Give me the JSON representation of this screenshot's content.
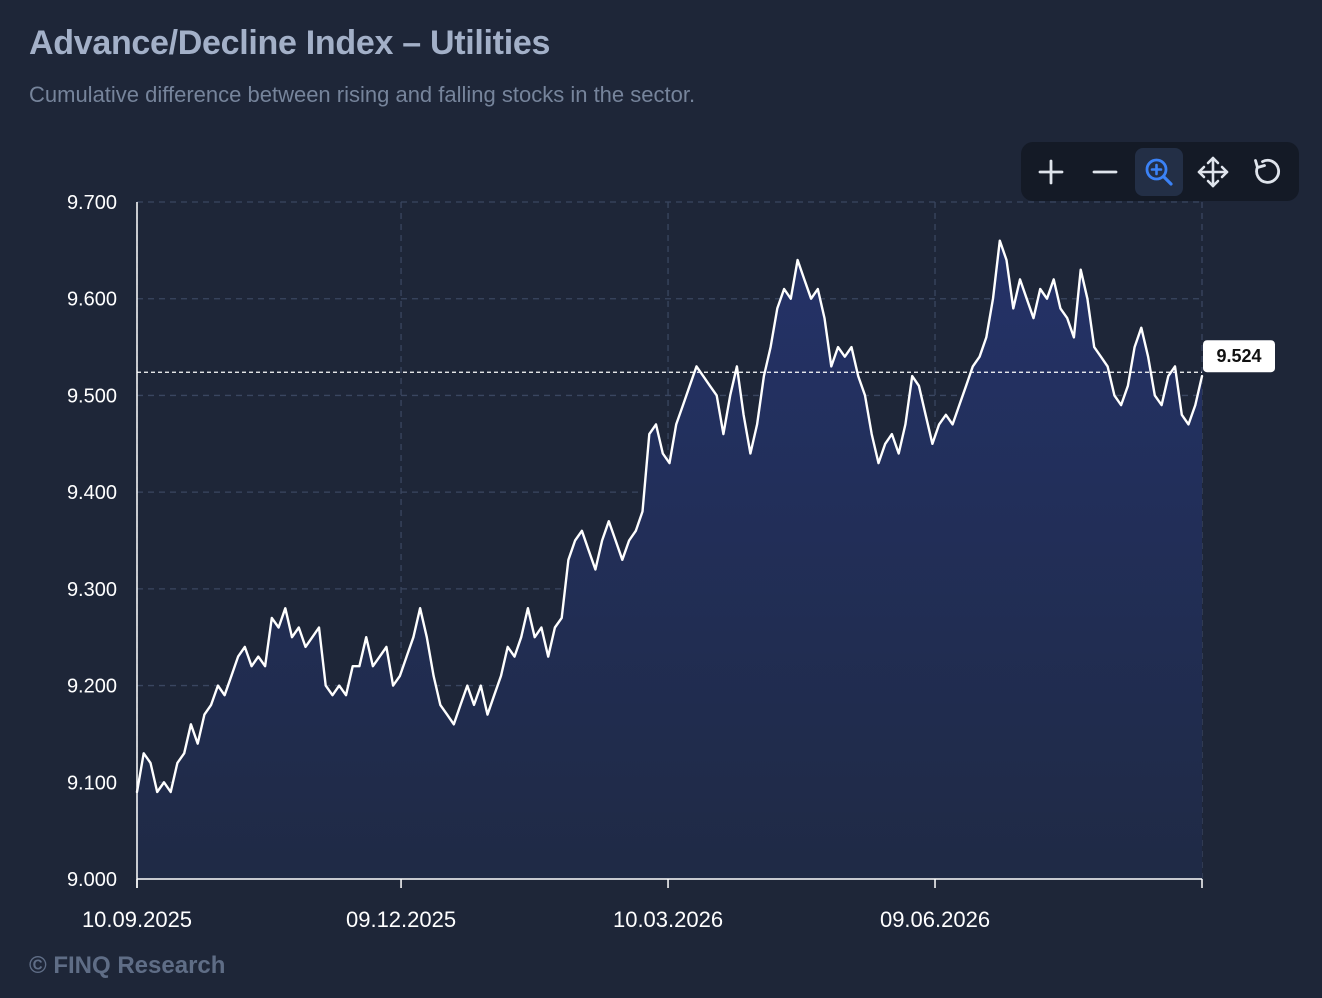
{
  "header": {
    "title": "Advance/Decline Index – Utilities",
    "subtitle": "Cumulative difference between rising and falling stocks in the sector."
  },
  "toolbar": {
    "tools": [
      {
        "name": "zoom-in",
        "icon": "plus-icon",
        "active": false
      },
      {
        "name": "zoom-out",
        "icon": "minus-icon",
        "active": false
      },
      {
        "name": "selection-zoom",
        "icon": "zoom-magnifier-icon",
        "active": true
      },
      {
        "name": "pan",
        "icon": "pan-arrows-icon",
        "active": false
      },
      {
        "name": "reset",
        "icon": "reset-icon",
        "active": false
      }
    ]
  },
  "footer": {
    "credit": "© FINQ Research"
  },
  "colors": {
    "background": "#1e2638",
    "line": "#ffffff",
    "fill_top": "#243268",
    "fill_bottom": "#1f2a45",
    "grid": "#3a4660",
    "active_tool": "#3b82f6"
  },
  "chart_data": {
    "type": "area",
    "title": "Advance/Decline Index – Utilities",
    "subtitle": "Cumulative difference between rising and falling stocks in the sector.",
    "xlabel": "",
    "ylabel": "",
    "x_start": "10.09.2025",
    "x_end": "2026-09-08",
    "x_ticks": [
      {
        "date": "2025-09-10",
        "label": "10.09.2025"
      },
      {
        "date": "2025-12-09",
        "label": "09.12.2025"
      },
      {
        "date": "2026-03-10",
        "label": "10.03.2026"
      },
      {
        "date": "2026-06-09",
        "label": "09.06.2026"
      }
    ],
    "ylim": [
      9.0,
      9.7
    ],
    "y_ticks": [
      9.0,
      9.1,
      9.2,
      9.3,
      9.4,
      9.5,
      9.6,
      9.7
    ],
    "y_tick_labels": [
      "9.000",
      "9.100",
      "9.200",
      "9.300",
      "9.400",
      "9.500",
      "9.600",
      "9.700"
    ],
    "grid": true,
    "last_value": 9.524,
    "last_value_label": "9.524",
    "series": [
      {
        "values": [
          9.09,
          9.13,
          9.12,
          9.09,
          9.1,
          9.09,
          9.12,
          9.13,
          9.16,
          9.14,
          9.17,
          9.18,
          9.2,
          9.19,
          9.21,
          9.23,
          9.24,
          9.22,
          9.23,
          9.22,
          9.27,
          9.26,
          9.28,
          9.25,
          9.26,
          9.24,
          9.25,
          9.26,
          9.2,
          9.19,
          9.2,
          9.19,
          9.22,
          9.22,
          9.25,
          9.22,
          9.23,
          9.24,
          9.2,
          9.21,
          9.23,
          9.25,
          9.28,
          9.25,
          9.21,
          9.18,
          9.17,
          9.16,
          9.18,
          9.2,
          9.18,
          9.2,
          9.17,
          9.19,
          9.21,
          9.24,
          9.23,
          9.25,
          9.28,
          9.25,
          9.26,
          9.23,
          9.26,
          9.27,
          9.33,
          9.35,
          9.36,
          9.34,
          9.32,
          9.35,
          9.37,
          9.35,
          9.33,
          9.35,
          9.36,
          9.38,
          9.46,
          9.47,
          9.44,
          9.43,
          9.47,
          9.49,
          9.51,
          9.53,
          9.52,
          9.51,
          9.5,
          9.46,
          9.5,
          9.53,
          9.48,
          9.44,
          9.47,
          9.52,
          9.55,
          9.59,
          9.61,
          9.6,
          9.64,
          9.62,
          9.6,
          9.61,
          9.58,
          9.53,
          9.55,
          9.54,
          9.55,
          9.52,
          9.5,
          9.46,
          9.43,
          9.45,
          9.46,
          9.44,
          9.47,
          9.52,
          9.51,
          9.48,
          9.45,
          9.47,
          9.48,
          9.47,
          9.49,
          9.51,
          9.53,
          9.54,
          9.56,
          9.6,
          9.66,
          9.64,
          9.59,
          9.62,
          9.6,
          9.58,
          9.61,
          9.6,
          9.62,
          9.59,
          9.58,
          9.56,
          9.63,
          9.6,
          9.55,
          9.54,
          9.53,
          9.5,
          9.49,
          9.51,
          9.55,
          9.57,
          9.54,
          9.5,
          9.49,
          9.52,
          9.53,
          9.48,
          9.47,
          9.49,
          9.52
        ]
      }
    ]
  }
}
